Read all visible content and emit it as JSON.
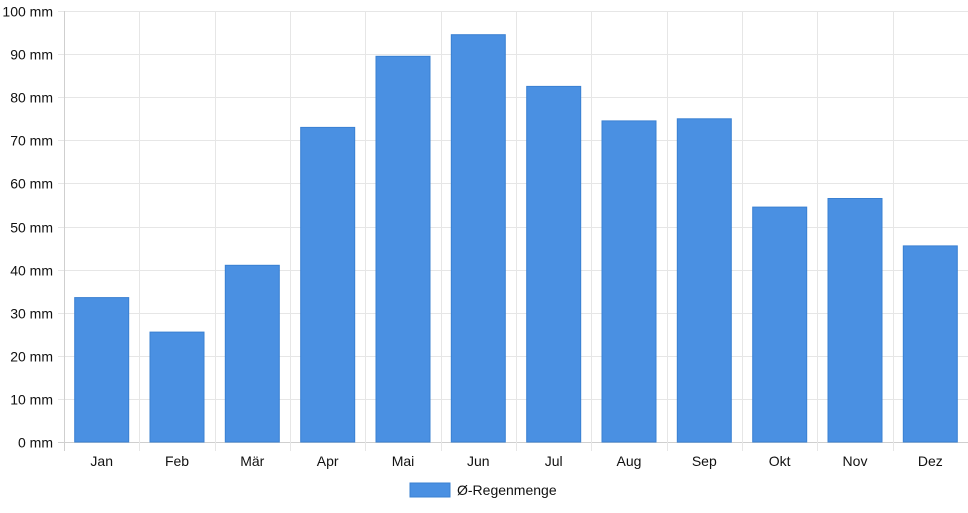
{
  "chart_data": {
    "type": "bar",
    "categories": [
      "Jan",
      "Feb",
      "Mär",
      "Apr",
      "Mai",
      "Jun",
      "Jul",
      "Aug",
      "Sep",
      "Okt",
      "Nov",
      "Dez"
    ],
    "series": [
      {
        "name": "Ø-Regenmenge",
        "color": "#4a90e2",
        "values": [
          33.5,
          25.5,
          41.0,
          73.0,
          89.5,
          94.5,
          82.5,
          74.5,
          75.0,
          54.5,
          56.5,
          45.5
        ]
      }
    ],
    "ylim": [
      0,
      100
    ],
    "yticks": [
      {
        "value": 0,
        "label": "0 mm"
      },
      {
        "value": 10,
        "label": "10 mm"
      },
      {
        "value": 20,
        "label": "20 mm"
      },
      {
        "value": 30,
        "label": "30 mm"
      },
      {
        "value": 40,
        "label": "40 mm"
      },
      {
        "value": 50,
        "label": "50 mm"
      },
      {
        "value": 60,
        "label": "60 mm"
      },
      {
        "value": 70,
        "label": "70 mm"
      },
      {
        "value": 80,
        "label": "80 mm"
      },
      {
        "value": 90,
        "label": "90 mm"
      },
      {
        "value": 100,
        "label": "100 mm"
      }
    ],
    "grid": true,
    "legend_position": "bottom"
  }
}
